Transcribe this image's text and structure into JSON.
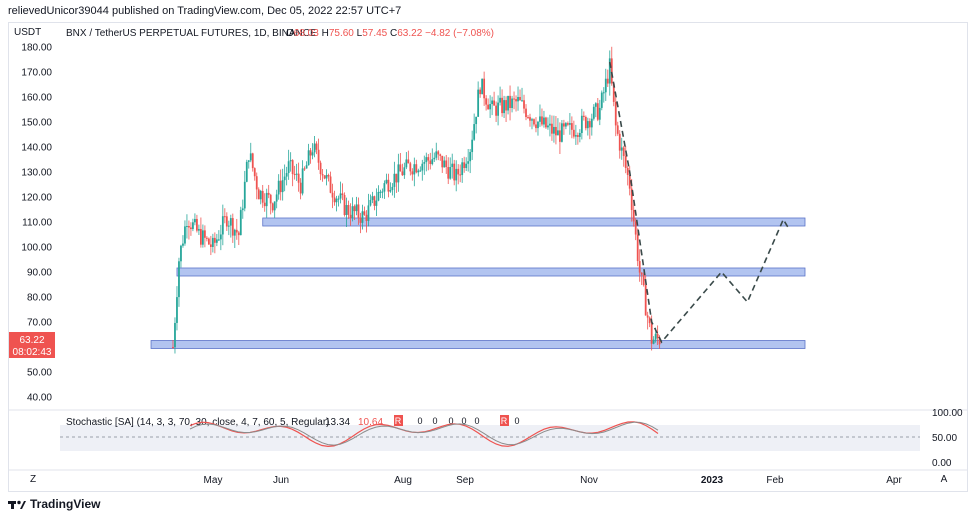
{
  "publish_line": "relievedUnicor39044 published on TradingView.com, Dec 05, 2022 22:57 UTC+7",
  "currency": "USDT",
  "legend": {
    "symbol": "BNX / TetherUS PERPETUAL FUTURES, 1D, BINANCE",
    "o_label": "O",
    "o": "68.03",
    "h_label": "H",
    "h": "75.60",
    "l_label": "L",
    "l": "57.45",
    "c_label": "C",
    "c": "63.22",
    "change": "−4.82 (−7.08%)"
  },
  "last_price": "63.22",
  "countdown": "08:02:43",
  "indicator": {
    "label": "Stochastic [SA] (14, 3, 3, 70, 30, close, 4, 7, 60, 5, Regular)",
    "v1": "13.34",
    "v2": "10.64",
    "axis": [
      "100.00",
      "50.00",
      "0.00"
    ],
    "markers": [
      "R",
      "0",
      "0",
      "0",
      "0",
      "0",
      "R",
      "0"
    ]
  },
  "time_labels": [
    "May",
    "Jun",
    "Aug",
    "Sep",
    "Nov",
    "2023",
    "Feb",
    "Apr"
  ],
  "bottom_buttons": {
    "left": "Z",
    "right": "A"
  },
  "footer": {
    "brand": "TradingView"
  },
  "colors": {
    "up": "#26a69a",
    "down": "#ef5350",
    "zone": "#b2c4f0",
    "zone_border": "#5b73c9",
    "dash": "#3a4a4a"
  },
  "chart_data": {
    "type": "candlestick",
    "title": "BNX / TetherUS PERPETUAL FUTURES, 1D, BINANCE",
    "ylabel": "USDT",
    "y_ticks": [
      180,
      170,
      160,
      150,
      140,
      130,
      120,
      110,
      100,
      90,
      80,
      70,
      60,
      50,
      40
    ],
    "ylim": [
      35,
      182
    ],
    "price_path": [
      {
        "date": "2022-04-05",
        "price": 60
      },
      {
        "date": "2022-04-08",
        "price": 95
      },
      {
        "date": "2022-04-12",
        "price": 112
      },
      {
        "date": "2022-04-18",
        "price": 105
      },
      {
        "date": "2022-04-25",
        "price": 100
      },
      {
        "date": "2022-05-02",
        "price": 112
      },
      {
        "date": "2022-05-08",
        "price": 105
      },
      {
        "date": "2022-05-13",
        "price": 138
      },
      {
        "date": "2022-05-18",
        "price": 122
      },
      {
        "date": "2022-05-25",
        "price": 118
      },
      {
        "date": "2022-06-02",
        "price": 132
      },
      {
        "date": "2022-06-08",
        "price": 125
      },
      {
        "date": "2022-06-14",
        "price": 140
      },
      {
        "date": "2022-06-22",
        "price": 125
      },
      {
        "date": "2022-07-01",
        "price": 115
      },
      {
        "date": "2022-07-10",
        "price": 112
      },
      {
        "date": "2022-07-20",
        "price": 125
      },
      {
        "date": "2022-08-01",
        "price": 132
      },
      {
        "date": "2022-08-15",
        "price": 136
      },
      {
        "date": "2022-08-25",
        "price": 128
      },
      {
        "date": "2022-09-01",
        "price": 140
      },
      {
        "date": "2022-09-06",
        "price": 165
      },
      {
        "date": "2022-09-12",
        "price": 155
      },
      {
        "date": "2022-09-25",
        "price": 158
      },
      {
        "date": "2022-10-05",
        "price": 150
      },
      {
        "date": "2022-10-15",
        "price": 145
      },
      {
        "date": "2022-10-25",
        "price": 148
      },
      {
        "date": "2022-11-05",
        "price": 155
      },
      {
        "date": "2022-11-10",
        "price": 172
      },
      {
        "date": "2022-11-13",
        "price": 148
      },
      {
        "date": "2022-11-20",
        "price": 125
      },
      {
        "date": "2022-11-25",
        "price": 90
      },
      {
        "date": "2022-12-01",
        "price": 63
      },
      {
        "date": "2022-12-05",
        "price": 63.22
      }
    ],
    "support_zones": [
      {
        "from": "2022-05-20",
        "to": "2023-02-10",
        "price": 110
      },
      {
        "from": "2022-04-07",
        "to": "2023-02-10",
        "price": 90
      },
      {
        "from": "2022-03-25",
        "to": "2023-02-10",
        "price": 61
      }
    ],
    "projection": [
      {
        "date": "2022-11-10",
        "price": 174
      },
      {
        "date": "2022-11-20",
        "price": 130
      },
      {
        "date": "2022-12-01",
        "price": 70
      },
      {
        "date": "2022-12-06",
        "price": 62
      },
      {
        "date": "2023-01-05",
        "price": 90
      },
      {
        "date": "2023-01-18",
        "price": 78
      },
      {
        "date": "2023-02-05",
        "price": 111
      },
      {
        "date": "2023-02-08",
        "price": 107
      }
    ]
  }
}
